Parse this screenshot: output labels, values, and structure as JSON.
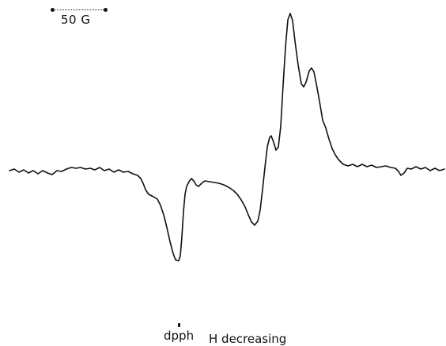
{
  "scale": {
    "label": "50 G"
  },
  "labels": {
    "marker": "dpph",
    "direction": "H decreasing"
  },
  "colors": {
    "trace": "#111111",
    "background": "#ffffff"
  }
}
